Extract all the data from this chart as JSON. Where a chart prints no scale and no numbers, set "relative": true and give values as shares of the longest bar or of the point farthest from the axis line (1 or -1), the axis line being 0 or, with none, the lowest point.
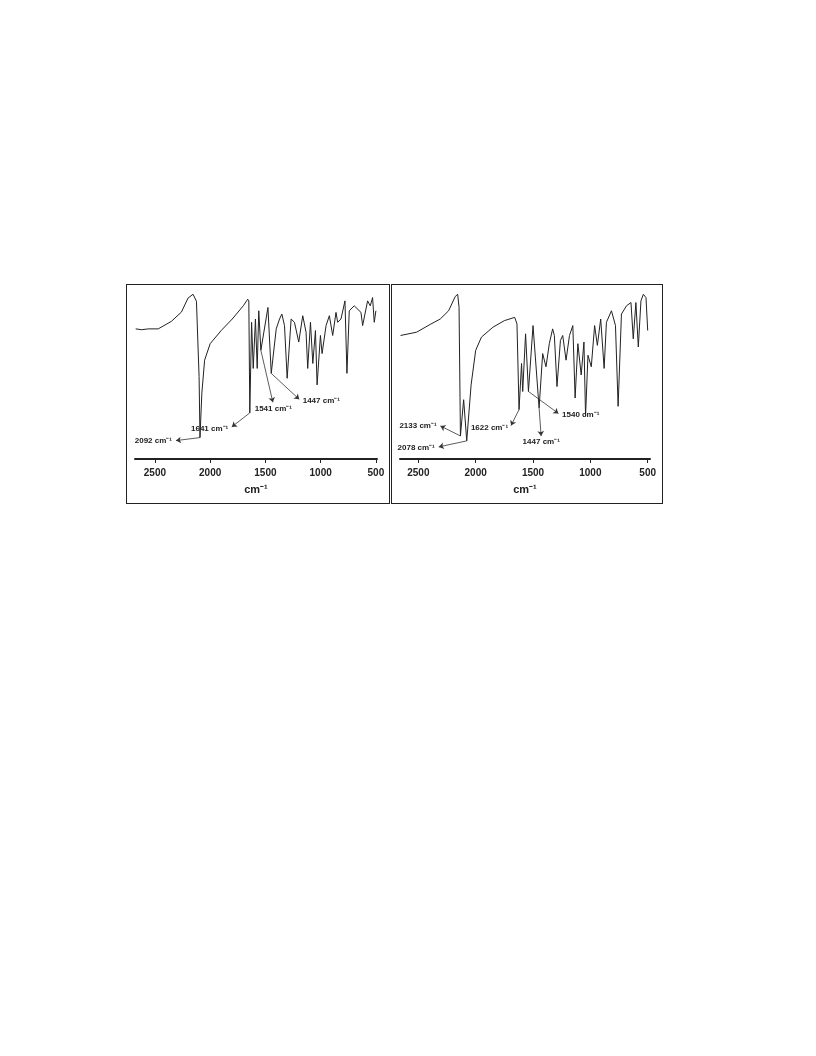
{
  "chart_data": [
    {
      "type": "line",
      "relative": true,
      "xlabel": "cm⁻¹",
      "xlim": [
        2680,
        490
      ],
      "xticks": [
        2500,
        2000,
        1500,
        1000,
        500
      ],
      "grid": false,
      "marker": "none",
      "line_style": "solid",
      "series": [
        {
          "color": "#222222",
          "x": [
            2674,
            2620,
            2560,
            2470,
            2350,
            2260,
            2200,
            2155,
            2124,
            2100,
            2092,
            2075,
            2050,
            2000,
            1900,
            1800,
            1700,
            1660,
            1650,
            1641,
            1625,
            1610,
            1590,
            1574,
            1560,
            1541,
            1477,
            1447,
            1402,
            1372,
            1351,
            1327,
            1303,
            1267,
            1237,
            1198,
            1162,
            1132,
            1117,
            1092,
            1071,
            1047,
            1032,
            1002,
            987,
            951,
            921,
            891,
            861,
            846,
            816,
            780,
            762,
            741,
            696,
            635,
            620,
            575,
            551,
            530,
            515,
            500
          ],
          "values": [
            0.79,
            0.785,
            0.79,
            0.79,
            0.836,
            0.892,
            0.977,
            1.0,
            0.958,
            0.5,
            0.13,
            0.4,
            0.6,
            0.7,
            0.78,
            0.85,
            0.93,
            0.97,
            0.96,
            0.28,
            0.83,
            0.55,
            0.85,
            0.55,
            0.9,
            0.66,
            0.92,
            0.52,
            0.79,
            0.85,
            0.88,
            0.81,
            0.49,
            0.85,
            0.83,
            0.71,
            0.87,
            0.77,
            0.55,
            0.83,
            0.58,
            0.78,
            0.45,
            0.75,
            0.64,
            0.81,
            0.87,
            0.75,
            0.89,
            0.83,
            0.85,
            0.96,
            0.52,
            0.9,
            0.93,
            0.89,
            0.81,
            0.96,
            0.93,
            0.98,
            0.83,
            0.9
          ]
        }
      ],
      "annotations": [
        {
          "text": "2092 cm⁻¹",
          "x": 2092,
          "y": 0.13
        },
        {
          "text": "1641 cm⁻¹",
          "x": 1641,
          "y": 0.28
        },
        {
          "text": "1541 cm⁻¹",
          "x": 1541,
          "y": 0.66
        },
        {
          "text": "1447 cm⁻¹",
          "x": 1447,
          "y": 0.52
        }
      ]
    },
    {
      "type": "line",
      "relative": true,
      "xlabel": "cm⁻¹",
      "xlim": [
        2660,
        480
      ],
      "xticks": [
        2500,
        2000,
        1500,
        1000,
        500
      ],
      "grid": false,
      "marker": "none",
      "line_style": "solid",
      "series": [
        {
          "color": "#222222",
          "x": [
            2655,
            2515,
            2397,
            2309,
            2236,
            2178,
            2157,
            2145,
            2133,
            2105,
            2078,
            2040,
            2000,
            1950,
            1850,
            1750,
            1660,
            1640,
            1622,
            1600,
            1590,
            1565,
            1540,
            1500,
            1447,
            1416,
            1387,
            1358,
            1329,
            1314,
            1291,
            1261,
            1241,
            1212,
            1182,
            1153,
            1133,
            1109,
            1080,
            1056,
            1042,
            1021,
            992,
            963,
            939,
            910,
            880,
            860,
            816,
            781,
            758,
            729,
            685,
            646,
            626,
            603,
            582,
            559,
            538,
            515,
            500
          ],
          "values": [
            0.75,
            0.77,
            0.817,
            0.85,
            0.9,
            0.987,
            1.0,
            0.92,
            0.14,
            0.36,
            0.11,
            0.45,
            0.66,
            0.74,
            0.8,
            0.84,
            0.86,
            0.82,
            0.3,
            0.58,
            0.41,
            0.76,
            0.41,
            0.81,
            0.31,
            0.64,
            0.56,
            0.7,
            0.79,
            0.75,
            0.44,
            0.72,
            0.75,
            0.6,
            0.75,
            0.81,
            0.37,
            0.7,
            0.51,
            0.71,
            0.26,
            0.63,
            0.56,
            0.81,
            0.69,
            0.85,
            0.55,
            0.83,
            0.9,
            0.81,
            0.32,
            0.88,
            0.93,
            0.95,
            0.73,
            0.95,
            0.68,
            0.96,
            1.0,
            0.98,
            0.78
          ]
        }
      ],
      "annotations": [
        {
          "text": "2133 cm⁻¹",
          "x": 2133,
          "y": 0.14
        },
        {
          "text": "2078 cm⁻¹",
          "x": 2078,
          "y": 0.11
        },
        {
          "text": "1622 cm⁻¹",
          "x": 1622,
          "y": 0.3
        },
        {
          "text": "1447 cm⁻¹",
          "x": 1447,
          "y": 0.31
        },
        {
          "text": "1540 cm⁻¹",
          "x": 1540,
          "y": 0.41
        }
      ]
    }
  ]
}
